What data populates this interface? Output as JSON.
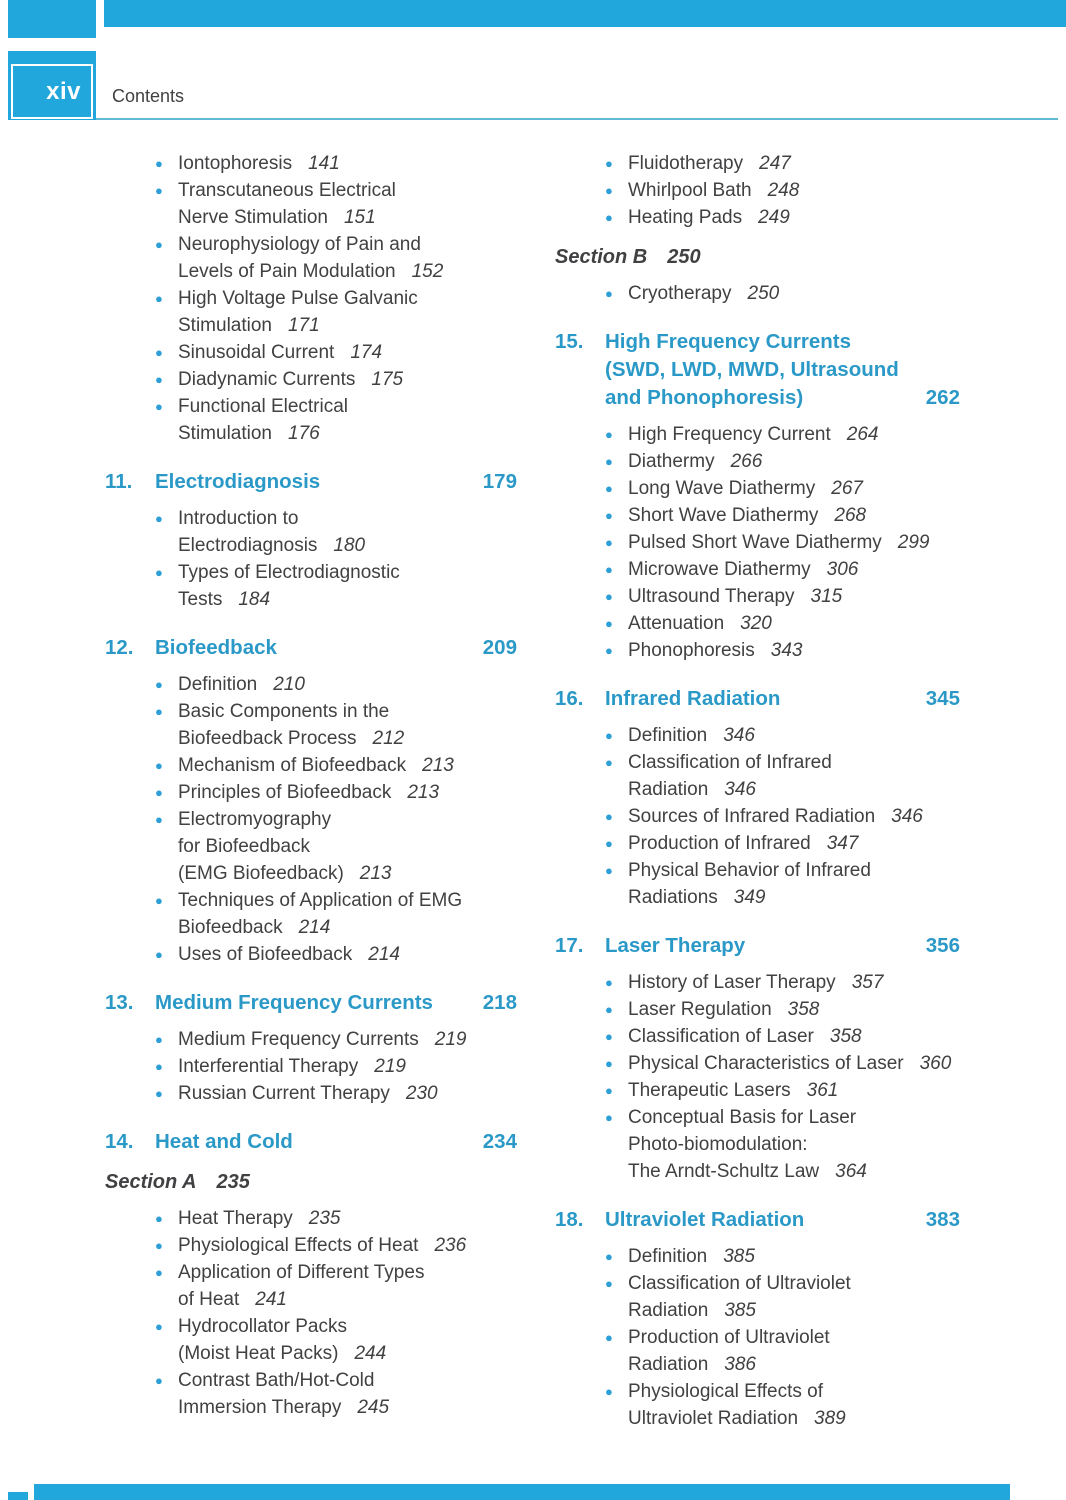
{
  "page": {
    "folio": "xiv",
    "header_label": "Contents"
  },
  "colors": {
    "accent": "#22a7dd",
    "heading": "#2b99c7",
    "bullet": "#2d9fd6",
    "rule": "#62b9d2",
    "body_text": "#414042"
  },
  "columns": [
    {
      "blocks": [
        {
          "type": "items",
          "items": [
            {
              "text": "Iontophoresis",
              "page": "141"
            },
            {
              "text": "Transcutaneous Electrical\nNerve Stimulation",
              "page": "151"
            },
            {
              "text": "Neurophysiology of Pain and\nLevels of Pain Modulation",
              "page": "152"
            },
            {
              "text": "High Voltage Pulse Galvanic\nStimulation",
              "page": "171"
            },
            {
              "text": "Sinusoidal Current",
              "page": "174"
            },
            {
              "text": "Diadynamic Currents",
              "page": "175"
            },
            {
              "text": "Functional Electrical\nStimulation",
              "page": "176"
            }
          ]
        },
        {
          "type": "chapter",
          "number": "11.",
          "title": "Electrodiagnosis",
          "page": "179"
        },
        {
          "type": "items",
          "items": [
            {
              "text": "Introduction to\nElectrodiagnosis",
              "page": "180"
            },
            {
              "text": "Types of Electrodiagnostic\nTests",
              "page": "184"
            }
          ]
        },
        {
          "type": "chapter",
          "number": "12.",
          "title": "Biofeedback",
          "page": "209"
        },
        {
          "type": "items",
          "items": [
            {
              "text": "Definition",
              "page": "210"
            },
            {
              "text": "Basic Components in the\nBiofeedback Process",
              "page": "212"
            },
            {
              "text": "Mechanism of Biofeedback",
              "page": "213"
            },
            {
              "text": "Principles of Biofeedback",
              "page": "213"
            },
            {
              "text": "Electromyography\nfor Biofeedback\n(EMG Biofeedback)",
              "page": "213"
            },
            {
              "text": "Techniques of Application of EMG\nBiofeedback",
              "page": "214"
            },
            {
              "text": "Uses of Biofeedback",
              "page": "214"
            }
          ]
        },
        {
          "type": "chapter",
          "number": "13.",
          "title": "Medium Frequency Currents",
          "page": "218"
        },
        {
          "type": "items",
          "items": [
            {
              "text": "Medium Frequency Currents",
              "page": "219"
            },
            {
              "text": "Interferential Therapy",
              "page": "219"
            },
            {
              "text": "Russian Current Therapy",
              "page": "230"
            }
          ]
        },
        {
          "type": "chapter",
          "number": "14.",
          "title": "Heat and Cold",
          "page": "234"
        },
        {
          "type": "section",
          "title": "Section A",
          "page": "235"
        },
        {
          "type": "items",
          "items": [
            {
              "text": "Heat Therapy",
              "page": "235"
            },
            {
              "text": "Physiological Effects of Heat",
              "page": "236"
            },
            {
              "text": "Application of Different Types\nof Heat",
              "page": "241"
            },
            {
              "text": "Hydrocollator Packs\n(Moist Heat Packs)",
              "page": "244"
            },
            {
              "text": "Contrast Bath/Hot-Cold\nImmersion Therapy",
              "page": "245"
            }
          ]
        }
      ]
    },
    {
      "blocks": [
        {
          "type": "items",
          "items": [
            {
              "text": "Fluidotherapy",
              "page": "247"
            },
            {
              "text": "Whirlpool Bath",
              "page": "248"
            },
            {
              "text": "Heating Pads",
              "page": "249"
            }
          ]
        },
        {
          "type": "section",
          "title": "Section B",
          "page": "250"
        },
        {
          "type": "items",
          "items": [
            {
              "text": "Cryotherapy",
              "page": "250"
            }
          ]
        },
        {
          "type": "chapter",
          "number": "15.",
          "title": "High Frequency Currents\n(SWD, LWD, MWD, Ultrasound\nand Phonophoresis)",
          "page": "262"
        },
        {
          "type": "items",
          "items": [
            {
              "text": "High Frequency Current",
              "page": "264"
            },
            {
              "text": "Diathermy",
              "page": "266"
            },
            {
              "text": "Long Wave Diathermy",
              "page": "267"
            },
            {
              "text": "Short Wave Diathermy",
              "page": "268"
            },
            {
              "text": "Pulsed Short Wave Diathermy",
              "page": "299"
            },
            {
              "text": "Microwave Diathermy",
              "page": "306"
            },
            {
              "text": "Ultrasound Therapy",
              "page": "315"
            },
            {
              "text": "Attenuation",
              "page": "320"
            },
            {
              "text": "Phonophoresis",
              "page": "343"
            }
          ]
        },
        {
          "type": "chapter",
          "number": "16.",
          "title": "Infrared Radiation",
          "page": "345"
        },
        {
          "type": "items",
          "items": [
            {
              "text": "Definition",
              "page": "346"
            },
            {
              "text": "Classification of Infrared\nRadiation",
              "page": "346"
            },
            {
              "text": "Sources of Infrared Radiation",
              "page": "346"
            },
            {
              "text": "Production of Infrared",
              "page": "347"
            },
            {
              "text": "Physical Behavior of Infrared\nRadiations",
              "page": "349"
            }
          ]
        },
        {
          "type": "chapter",
          "number": "17.",
          "title": "Laser Therapy",
          "page": "356"
        },
        {
          "type": "items",
          "items": [
            {
              "text": "History of Laser Therapy",
              "page": "357"
            },
            {
              "text": "Laser Regulation",
              "page": "358"
            },
            {
              "text": "Classification of Laser",
              "page": "358"
            },
            {
              "text": "Physical Characteristics of Laser",
              "page": "360"
            },
            {
              "text": "Therapeutic Lasers",
              "page": "361"
            },
            {
              "text": "Conceptual Basis for Laser\nPhoto-biomodulation:\nThe Arndt-Schultz Law",
              "page": "364"
            }
          ]
        },
        {
          "type": "chapter",
          "number": "18.",
          "title": "Ultraviolet Radiation",
          "page": "383"
        },
        {
          "type": "items",
          "items": [
            {
              "text": "Definition",
              "page": "385"
            },
            {
              "text": "Classification of Ultraviolet\nRadiation",
              "page": "385"
            },
            {
              "text": "Production of Ultraviolet\nRadiation",
              "page": "386"
            },
            {
              "text": "Physiological Effects of\nUltraviolet Radiation",
              "page": "389"
            }
          ]
        }
      ]
    }
  ]
}
